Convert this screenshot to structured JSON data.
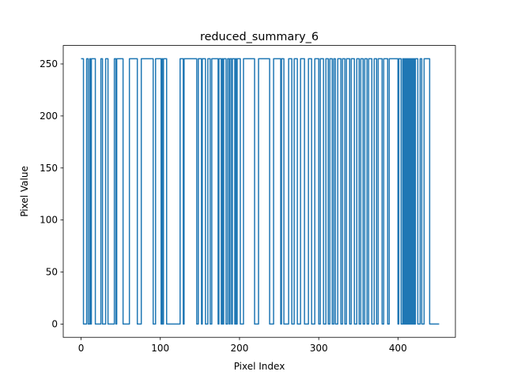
{
  "chart_data": {
    "type": "line",
    "title": "reduced_summary_6",
    "xlabel": "Pixel Index",
    "ylabel": "Pixel Value",
    "xlim": [
      -22.5,
      472.5
    ],
    "ylim": [
      -12.75,
      267.75
    ],
    "xticks": [
      0,
      100,
      200,
      300,
      400
    ],
    "yticks": [
      0,
      50,
      100,
      150,
      200,
      250
    ],
    "grid": false,
    "legend": "none",
    "series": [
      {
        "color": "#1f77b4",
        "steps": [
          [
            0,
            255
          ],
          [
            3,
            0
          ],
          [
            7,
            255
          ],
          [
            9,
            0
          ],
          [
            11,
            255
          ],
          [
            12,
            0
          ],
          [
            13,
            255
          ],
          [
            18,
            0
          ],
          [
            25,
            255
          ],
          [
            27,
            0
          ],
          [
            31,
            255
          ],
          [
            34,
            0
          ],
          [
            42,
            255
          ],
          [
            44,
            0
          ],
          [
            45,
            255
          ],
          [
            53,
            0
          ],
          [
            61,
            255
          ],
          [
            71,
            0
          ],
          [
            76,
            255
          ],
          [
            91,
            0
          ],
          [
            94,
            255
          ],
          [
            101,
            0
          ],
          [
            102,
            255
          ],
          [
            103,
            0
          ],
          [
            104,
            255
          ],
          [
            108,
            0
          ],
          [
            125,
            255
          ],
          [
            129,
            0
          ],
          [
            130,
            255
          ],
          [
            146,
            0
          ],
          [
            148,
            255
          ],
          [
            152,
            0
          ],
          [
            153,
            255
          ],
          [
            157,
            0
          ],
          [
            160,
            255
          ],
          [
            163,
            0
          ],
          [
            165,
            255
          ],
          [
            173,
            0
          ],
          [
            174,
            255
          ],
          [
            177,
            0
          ],
          [
            178,
            255
          ],
          [
            179,
            0
          ],
          [
            180,
            255
          ],
          [
            183,
            0
          ],
          [
            185,
            255
          ],
          [
            187,
            0
          ],
          [
            188,
            255
          ],
          [
            190,
            0
          ],
          [
            191,
            255
          ],
          [
            194,
            0
          ],
          [
            195,
            255
          ],
          [
            196,
            0
          ],
          [
            197,
            255
          ],
          [
            201,
            0
          ],
          [
            205,
            255
          ],
          [
            219,
            0
          ],
          [
            224,
            255
          ],
          [
            238,
            0
          ],
          [
            243,
            255
          ],
          [
            252,
            0
          ],
          [
            253,
            255
          ],
          [
            256,
            0
          ],
          [
            262,
            255
          ],
          [
            266,
            0
          ],
          [
            269,
            255
          ],
          [
            273,
            0
          ],
          [
            277,
            255
          ],
          [
            282,
            0
          ],
          [
            287,
            255
          ],
          [
            291,
            0
          ],
          [
            295,
            255
          ],
          [
            300,
            0
          ],
          [
            302,
            255
          ],
          [
            306,
            0
          ],
          [
            309,
            255
          ],
          [
            312,
            0
          ],
          [
            314,
            255
          ],
          [
            317,
            0
          ],
          [
            319,
            255
          ],
          [
            321,
            0
          ],
          [
            324,
            255
          ],
          [
            328,
            0
          ],
          [
            330,
            255
          ],
          [
            333,
            0
          ],
          [
            335,
            255
          ],
          [
            339,
            0
          ],
          [
            341,
            255
          ],
          [
            345,
            0
          ],
          [
            348,
            255
          ],
          [
            351,
            0
          ],
          [
            353,
            255
          ],
          [
            356,
            0
          ],
          [
            358,
            255
          ],
          [
            361,
            0
          ],
          [
            363,
            255
          ],
          [
            367,
            0
          ],
          [
            370,
            255
          ],
          [
            373,
            0
          ],
          [
            375,
            255
          ],
          [
            380,
            0
          ],
          [
            382,
            255
          ],
          [
            387,
            0
          ],
          [
            389,
            255
          ],
          [
            400,
            0
          ],
          [
            401,
            255
          ],
          [
            404,
            0
          ],
          [
            406,
            255
          ],
          [
            407,
            0
          ],
          [
            408,
            255
          ],
          [
            409,
            0
          ],
          [
            410,
            255
          ],
          [
            411,
            0
          ],
          [
            412,
            255
          ],
          [
            413,
            0
          ],
          [
            414,
            255
          ],
          [
            415,
            0
          ],
          [
            416,
            255
          ],
          [
            417,
            0
          ],
          [
            418,
            255
          ],
          [
            419,
            0
          ],
          [
            420,
            255
          ],
          [
            421,
            0
          ],
          [
            422,
            255
          ],
          [
            425,
            0
          ],
          [
            428,
            255
          ],
          [
            430,
            0
          ],
          [
            433,
            255
          ],
          [
            440,
            0
          ],
          [
            452,
            0
          ]
        ]
      }
    ]
  }
}
